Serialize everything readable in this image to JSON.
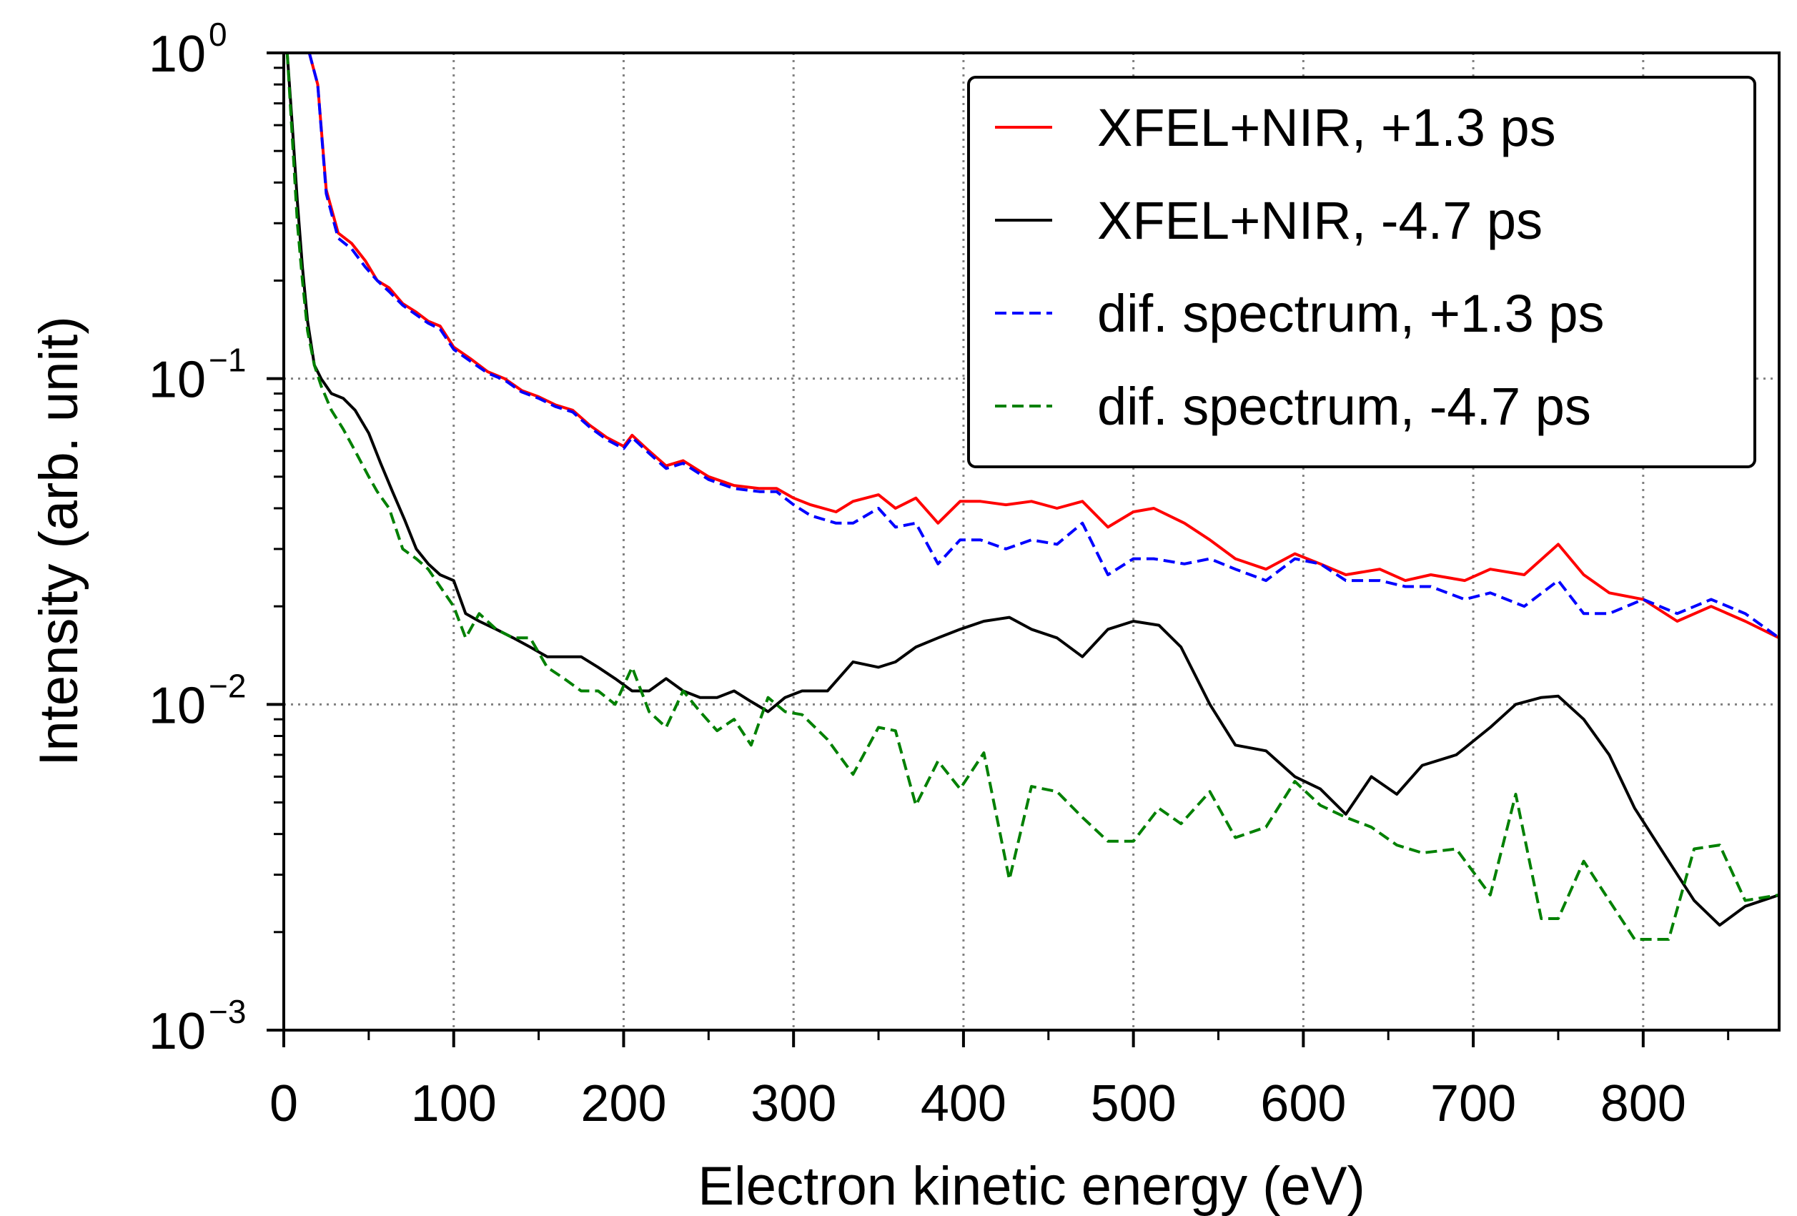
{
  "chart_data": {
    "type": "line",
    "title": "",
    "xlabel": "Electron kinetic energy (eV)",
    "ylabel": "Intensity (arb. unit)",
    "xlim": [
      0,
      880
    ],
    "ylim": [
      0.001,
      1
    ],
    "yscale": "log",
    "grid": "dotted at x ticks 100-800 and y ticks 0.01, 0.1",
    "legend_position": "top-right",
    "x_ticks": [
      0,
      100,
      200,
      300,
      400,
      500,
      600,
      700,
      800
    ],
    "x_tick_labels": [
      "0",
      "100",
      "200",
      "300",
      "400",
      "500",
      "600",
      "700",
      "800"
    ],
    "y_ticks": [
      {
        "value": 1,
        "base": "10",
        "exp": "0"
      },
      {
        "value": 0.1,
        "base": "10",
        "exp": "−1"
      },
      {
        "value": 0.01,
        "base": "10",
        "exp": "−2"
      },
      {
        "value": 0.001,
        "base": "10",
        "exp": "−3"
      }
    ],
    "series": [
      {
        "name": "XFEL+NIR, +1.3 ps",
        "color": "#ff0000",
        "dash": "solid",
        "x": [
          5,
          10,
          15,
          20,
          25,
          32,
          40,
          48,
          55,
          62,
          70,
          78,
          85,
          92,
          100,
          110,
          120,
          130,
          140,
          150,
          160,
          170,
          180,
          190,
          200,
          205,
          215,
          225,
          235,
          250,
          265,
          280,
          290,
          300,
          310,
          325,
          335,
          350,
          360,
          372,
          385,
          398,
          410,
          425,
          440,
          455,
          470,
          485,
          500,
          512,
          530,
          545,
          560,
          578,
          595,
          610,
          625,
          645,
          660,
          675,
          695,
          710,
          730,
          750,
          765,
          780,
          800,
          820,
          840,
          860,
          880
        ],
        "y": [
          1.0,
          1.0,
          1.0,
          0.8,
          0.38,
          0.28,
          0.26,
          0.23,
          0.2,
          0.19,
          0.17,
          0.16,
          0.15,
          0.145,
          0.125,
          0.115,
          0.105,
          0.1,
          0.092,
          0.088,
          0.083,
          0.08,
          0.072,
          0.066,
          0.062,
          0.067,
          0.06,
          0.054,
          0.056,
          0.05,
          0.047,
          0.046,
          0.046,
          0.043,
          0.041,
          0.039,
          0.042,
          0.044,
          0.04,
          0.043,
          0.036,
          0.042,
          0.042,
          0.041,
          0.042,
          0.04,
          0.042,
          0.035,
          0.039,
          0.04,
          0.036,
          0.032,
          0.028,
          0.026,
          0.029,
          0.027,
          0.025,
          0.026,
          0.024,
          0.025,
          0.024,
          0.026,
          0.025,
          0.031,
          0.025,
          0.022,
          0.021,
          0.018,
          0.02,
          0.018,
          0.016
        ]
      },
      {
        "name": "XFEL+NIR, -4.7 ps",
        "color": "#000000",
        "dash": "solid",
        "x": [
          2,
          5,
          8,
          11,
          14,
          18,
          22,
          28,
          35,
          42,
          50,
          57,
          64,
          71,
          78,
          85,
          92,
          100,
          107,
          115,
          125,
          135,
          145,
          155,
          165,
          175,
          185,
          195,
          205,
          215,
          225,
          235,
          245,
          255,
          265,
          275,
          285,
          295,
          305,
          320,
          335,
          350,
          360,
          372,
          385,
          398,
          412,
          427,
          440,
          455,
          470,
          485,
          500,
          515,
          528,
          545,
          560,
          578,
          595,
          610,
          625,
          640,
          655,
          670,
          690,
          710,
          725,
          740,
          750,
          765,
          780,
          795,
          815,
          830,
          845,
          860,
          880
        ],
        "y": [
          1.0,
          0.6,
          0.35,
          0.22,
          0.15,
          0.11,
          0.1,
          0.09,
          0.087,
          0.08,
          0.068,
          0.055,
          0.045,
          0.037,
          0.03,
          0.027,
          0.025,
          0.024,
          0.019,
          0.018,
          0.017,
          0.016,
          0.015,
          0.014,
          0.014,
          0.014,
          0.013,
          0.012,
          0.011,
          0.011,
          0.012,
          0.011,
          0.0105,
          0.0105,
          0.011,
          0.0102,
          0.0095,
          0.0105,
          0.011,
          0.011,
          0.0135,
          0.013,
          0.0135,
          0.015,
          0.016,
          0.017,
          0.018,
          0.0185,
          0.017,
          0.016,
          0.014,
          0.017,
          0.018,
          0.0175,
          0.015,
          0.01,
          0.0075,
          0.0072,
          0.006,
          0.0055,
          0.0046,
          0.006,
          0.0053,
          0.0065,
          0.007,
          0.0085,
          0.01,
          0.0105,
          0.0106,
          0.009,
          0.007,
          0.0048,
          0.0033,
          0.0025,
          0.0021,
          0.0024,
          0.0026
        ]
      },
      {
        "name": "dif. spectrum, +1.3 ps",
        "color": "#0000ff",
        "dash": "dashed",
        "x": [
          15,
          20,
          25,
          32,
          40,
          48,
          55,
          62,
          70,
          78,
          85,
          92,
          100,
          110,
          120,
          130,
          140,
          150,
          160,
          170,
          180,
          190,
          200,
          205,
          215,
          225,
          235,
          250,
          265,
          280,
          290,
          300,
          310,
          325,
          335,
          350,
          360,
          372,
          385,
          398,
          410,
          425,
          440,
          455,
          470,
          485,
          500,
          512,
          530,
          545,
          560,
          578,
          595,
          610,
          625,
          645,
          660,
          675,
          695,
          710,
          730,
          750,
          765,
          780,
          800,
          820,
          840,
          860,
          880
        ],
        "y": [
          1.0,
          0.8,
          0.37,
          0.27,
          0.25,
          0.22,
          0.2,
          0.185,
          0.168,
          0.157,
          0.148,
          0.142,
          0.123,
          0.113,
          0.104,
          0.099,
          0.091,
          0.087,
          0.082,
          0.079,
          0.071,
          0.065,
          0.061,
          0.066,
          0.059,
          0.053,
          0.055,
          0.049,
          0.046,
          0.045,
          0.045,
          0.041,
          0.038,
          0.036,
          0.036,
          0.04,
          0.035,
          0.036,
          0.027,
          0.032,
          0.032,
          0.03,
          0.032,
          0.031,
          0.036,
          0.025,
          0.028,
          0.028,
          0.027,
          0.028,
          0.026,
          0.024,
          0.028,
          0.027,
          0.024,
          0.024,
          0.023,
          0.023,
          0.021,
          0.022,
          0.02,
          0.024,
          0.019,
          0.019,
          0.021,
          0.019,
          0.021,
          0.019,
          0.016
        ]
      },
      {
        "name": "dif. spectrum, -4.7 ps",
        "color": "#008000",
        "dash": "dashed",
        "x": [
          2,
          5,
          8,
          11,
          14,
          18,
          22,
          28,
          35,
          42,
          50,
          55,
          62,
          70,
          78,
          85,
          92,
          100,
          107,
          115,
          125,
          135,
          145,
          155,
          165,
          175,
          185,
          195,
          205,
          215,
          225,
          235,
          245,
          255,
          265,
          275,
          285,
          295,
          305,
          320,
          335,
          350,
          360,
          372,
          385,
          398,
          412,
          427,
          440,
          455,
          470,
          485,
          500,
          515,
          528,
          545,
          560,
          578,
          595,
          610,
          625,
          640,
          655,
          670,
          690,
          710,
          725,
          740,
          750,
          765,
          780,
          795,
          815,
          830,
          845,
          860,
          880
        ],
        "y": [
          1.0,
          0.55,
          0.3,
          0.2,
          0.14,
          0.11,
          0.095,
          0.08,
          0.07,
          0.06,
          0.05,
          0.045,
          0.04,
          0.03,
          0.028,
          0.026,
          0.023,
          0.02,
          0.016,
          0.019,
          0.017,
          0.016,
          0.016,
          0.013,
          0.012,
          0.011,
          0.011,
          0.01,
          0.013,
          0.0095,
          0.0085,
          0.011,
          0.0095,
          0.0083,
          0.009,
          0.0075,
          0.0105,
          0.0095,
          0.0093,
          0.0078,
          0.0061,
          0.0085,
          0.0083,
          0.0049,
          0.0067,
          0.0055,
          0.0071,
          0.0029,
          0.0056,
          0.0054,
          0.0045,
          0.0038,
          0.0038,
          0.0048,
          0.0043,
          0.0054,
          0.0039,
          0.0042,
          0.0058,
          0.0049,
          0.0045,
          0.0042,
          0.0037,
          0.0035,
          0.0036,
          0.0026,
          0.0053,
          0.0022,
          0.0022,
          0.0033,
          0.0025,
          0.0019,
          0.0019,
          0.0036,
          0.0037,
          0.0025,
          0.0026
        ]
      }
    ]
  }
}
